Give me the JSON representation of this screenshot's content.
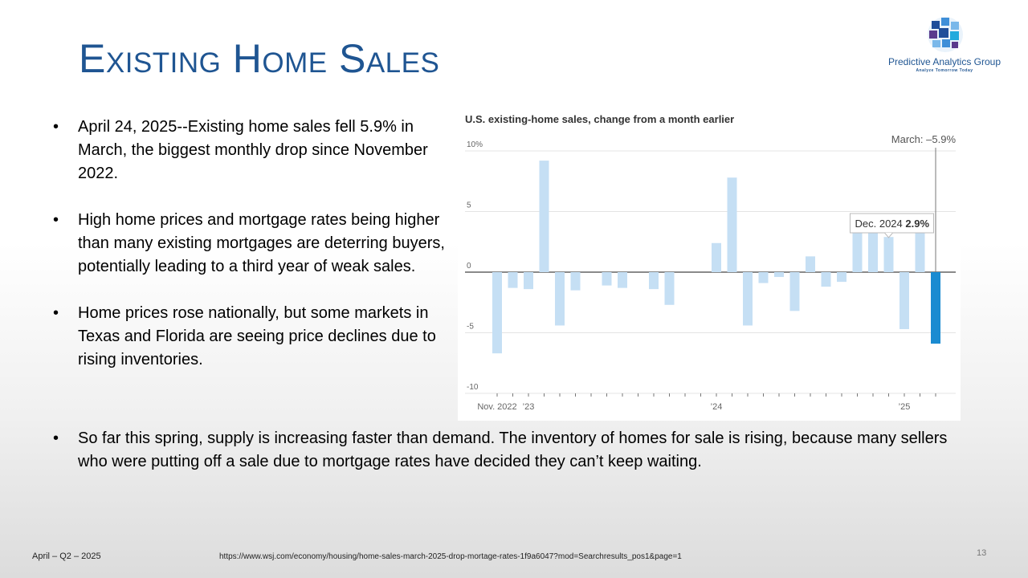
{
  "slide": {
    "title": "Existing Home Sales",
    "page_number": "13",
    "footer_left": "April – Q2 – 2025",
    "footer_url": "https://www.wsj.com/economy/housing/home-sales-march-2025-drop-mortage-rates-1f9a6047?mod=Searchresults_pos1&page=1"
  },
  "logo": {
    "name": "Predictive Analytics Group",
    "tagline": "Analyze Tomorrow Today",
    "icon": "puzzle-globe-icon",
    "colors": [
      "#1f4e9a",
      "#3f8fd8",
      "#7ab8ea",
      "#5a3a8c",
      "#22aadd"
    ]
  },
  "bullets": [
    "April 24, 2025--Existing home sales fell 5.9% in March, the biggest monthly drop since November 2022.",
    "High home prices and mortgage rates being higher than many existing mortgages are deterring buyers, potentially leading to a third year of weak sales.",
    "Home prices rose nationally, but some markets in Texas and Florida are seeing price declines due to rising inventories."
  ],
  "bullet_wide": "So far this spring, supply is increasing faster than demand. The inventory of homes for sale is rising, because many sellers who were putting off a sale due to mortgage rates have decided they can’t keep waiting.",
  "chart_data": {
    "type": "bar",
    "title": "U.S. existing-home sales, change from a month earlier",
    "x_tick_labels": [
      {
        "index": 0,
        "label": "Nov. 2022"
      },
      {
        "index": 2,
        "label": "’23"
      },
      {
        "index": 14,
        "label": "’24"
      },
      {
        "index": 26,
        "label": "’25"
      }
    ],
    "y_ticks": [
      10,
      5,
      0,
      -5,
      -10
    ],
    "y_tick_labels": [
      "10%",
      "5",
      "0",
      "-5",
      "-10"
    ],
    "ylim": [
      -10,
      10
    ],
    "grid": true,
    "values": [
      -6.7,
      -1.3,
      -1.4,
      9.2,
      -4.4,
      -1.5,
      0,
      -1.1,
      -1.3,
      0,
      -1.4,
      -2.7,
      0,
      0,
      2.4,
      7.8,
      -4.4,
      -0.9,
      -0.4,
      -3.2,
      1.3,
      -1.2,
      -0.8,
      3.4,
      3.4,
      2.9,
      -4.7,
      3.5,
      -5.9
    ],
    "bar_color": "#c5dff4",
    "highlight_color": "#1a8bd1",
    "highlight_index": 28,
    "highlight_label": "March: –5.9%",
    "annotation": {
      "index": 25,
      "label": "Dec. 2024",
      "value_label": "2.9%"
    }
  }
}
